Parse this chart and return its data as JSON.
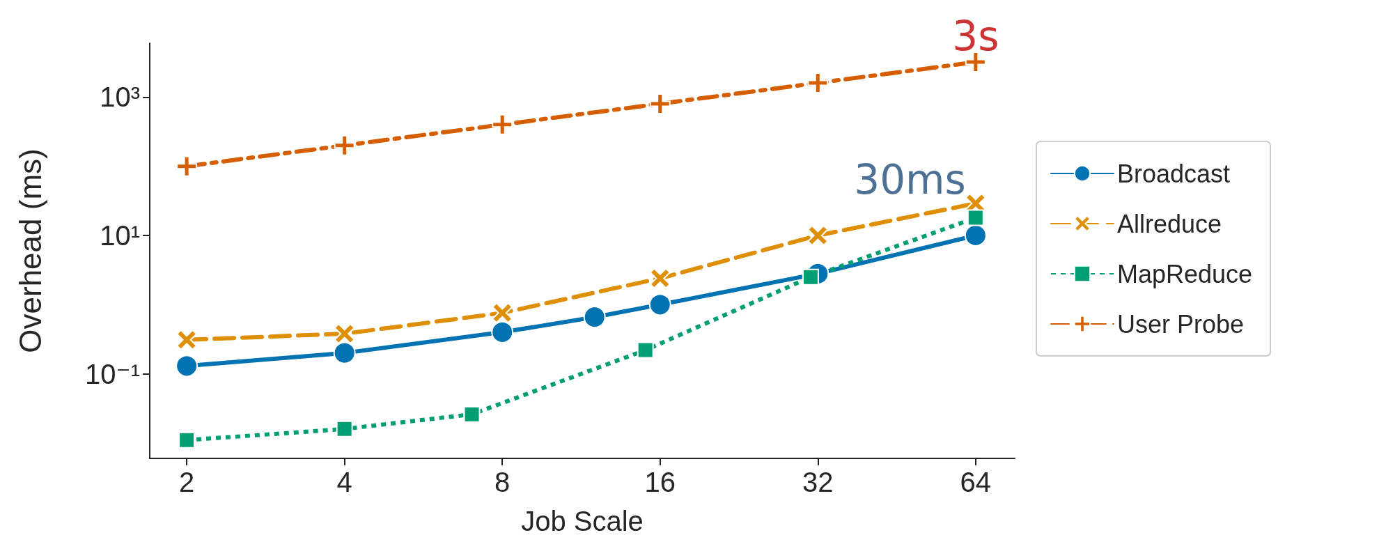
{
  "chart_data": {
    "type": "line",
    "xlabel": "Job Scale",
    "ylabel": "Overhead (ms)",
    "log": "xy",
    "xlim": [
      1.7,
      76
    ],
    "xticks": [
      2,
      4,
      8,
      16,
      32,
      64
    ],
    "ylim": [
      0.006,
      6000
    ],
    "yticks": [
      {
        "value": 0.1,
        "label": "10⁻¹"
      },
      {
        "value": 10,
        "label": "10¹"
      },
      {
        "value": 1000,
        "label": "10³"
      }
    ],
    "grid": false,
    "legend": "right",
    "series": [
      {
        "name": "Broadcast",
        "color": "#0173b2",
        "marker": "circle",
        "line_style": "solid",
        "x": [
          2,
          4,
          8,
          12,
          16,
          32,
          64
        ],
        "values": [
          0.13,
          0.2,
          0.4,
          0.66,
          1.0,
          2.8,
          10
        ]
      },
      {
        "name": "Allreduce",
        "color": "#de8f05",
        "marker": "cross",
        "line_style": "dashed",
        "x": [
          2,
          4,
          8,
          16,
          32,
          64
        ],
        "values": [
          0.31,
          0.38,
          0.76,
          2.4,
          10,
          29
        ]
      },
      {
        "name": "MapReduce",
        "color": "#029e73",
        "marker": "square",
        "line_style": "dotted",
        "x": [
          2,
          4,
          7,
          15,
          31,
          64
        ],
        "values": [
          0.011,
          0.016,
          0.026,
          0.22,
          2.5,
          18
        ]
      },
      {
        "name": "User Probe",
        "color": "#d55e00",
        "marker": "plus",
        "line_style": "dashdot",
        "x": [
          2,
          4,
          8,
          16,
          32,
          64
        ],
        "values": [
          100,
          200,
          400,
          800,
          1600,
          3200
        ]
      }
    ],
    "annotations": [
      {
        "text": "3s",
        "x": 64,
        "y": 3200
      },
      {
        "text": "30ms",
        "x": 64,
        "y": 29
      }
    ]
  }
}
